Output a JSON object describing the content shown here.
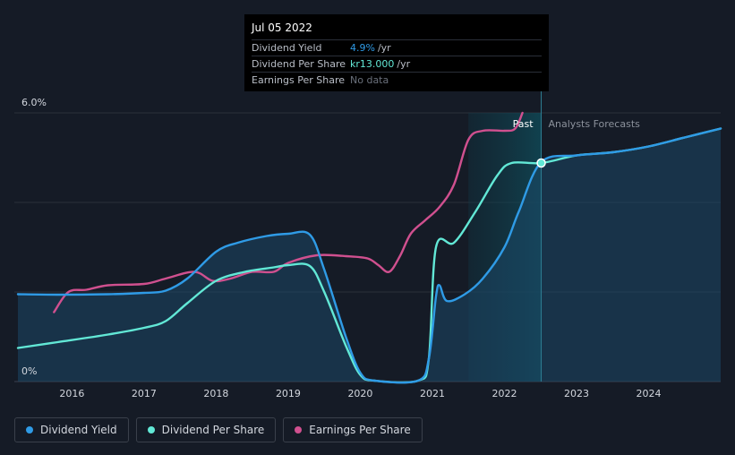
{
  "chart_data": {
    "type": "line",
    "x_range": [
      2015.2,
      2025.0
    ],
    "y_range_percent": [
      0,
      6.0
    ],
    "y_tick_labels": [
      "6.0%",
      "0%"
    ],
    "x_tick_labels": [
      "2016",
      "2017",
      "2018",
      "2019",
      "2020",
      "2021",
      "2022",
      "2023",
      "2024"
    ],
    "past_label": "Past",
    "forecast_label": "Analysts Forecasts",
    "divider_x": 2022.51,
    "series": [
      {
        "name": "Dividend Yield",
        "color": "#2f9be6",
        "unit": "percent",
        "points": [
          [
            2015.25,
            1.95
          ],
          [
            2015.8,
            1.94
          ],
          [
            2016.5,
            1.95
          ],
          [
            2017.0,
            1.98
          ],
          [
            2017.3,
            2.03
          ],
          [
            2017.6,
            2.3
          ],
          [
            2018.0,
            2.9
          ],
          [
            2018.3,
            3.1
          ],
          [
            2018.7,
            3.25
          ],
          [
            2019.0,
            3.3
          ],
          [
            2019.3,
            3.28
          ],
          [
            2019.5,
            2.5
          ],
          [
            2019.8,
            1.0
          ],
          [
            2020.0,
            0.2
          ],
          [
            2020.2,
            0.02
          ],
          [
            2020.8,
            0.02
          ],
          [
            2020.95,
            0.5
          ],
          [
            2021.05,
            1.9
          ],
          [
            2021.1,
            2.15
          ],
          [
            2021.2,
            1.8
          ],
          [
            2021.45,
            1.95
          ],
          [
            2021.7,
            2.3
          ],
          [
            2022.0,
            3.0
          ],
          [
            2022.2,
            3.8
          ],
          [
            2022.51,
            4.9
          ],
          [
            2023.0,
            5.05
          ],
          [
            2023.5,
            5.12
          ],
          [
            2024.0,
            5.25
          ],
          [
            2024.5,
            5.45
          ],
          [
            2025.0,
            5.65
          ]
        ]
      },
      {
        "name": "Dividend Per Share",
        "color": "#62e8d6",
        "unit": "NOK",
        "points": [
          [
            2015.25,
            0.75
          ],
          [
            2015.8,
            0.88
          ],
          [
            2016.5,
            1.05
          ],
          [
            2017.0,
            1.2
          ],
          [
            2017.3,
            1.35
          ],
          [
            2017.6,
            1.75
          ],
          [
            2018.0,
            2.25
          ],
          [
            2018.4,
            2.45
          ],
          [
            2018.8,
            2.55
          ],
          [
            2019.0,
            2.6
          ],
          [
            2019.3,
            2.58
          ],
          [
            2019.5,
            2.0
          ],
          [
            2019.8,
            0.8
          ],
          [
            2020.0,
            0.15
          ],
          [
            2020.2,
            0.02
          ],
          [
            2020.8,
            0.02
          ],
          [
            2020.95,
            0.5
          ],
          [
            2021.05,
            3.0
          ],
          [
            2021.3,
            3.1
          ],
          [
            2021.6,
            3.8
          ],
          [
            2021.9,
            4.6
          ],
          [
            2022.1,
            4.88
          ],
          [
            2022.51,
            4.88
          ],
          [
            2023.0,
            5.05
          ],
          [
            2023.5,
            5.12
          ],
          [
            2024.0,
            5.25
          ],
          [
            2024.5,
            5.45
          ],
          [
            2025.0,
            5.65
          ]
        ]
      },
      {
        "name": "Earnings Per Share",
        "color": "#d0508f",
        "unit": "NOK",
        "points": [
          [
            2015.75,
            1.55
          ],
          [
            2015.95,
            2.0
          ],
          [
            2016.2,
            2.05
          ],
          [
            2016.5,
            2.15
          ],
          [
            2017.0,
            2.18
          ],
          [
            2017.3,
            2.3
          ],
          [
            2017.7,
            2.45
          ],
          [
            2017.95,
            2.25
          ],
          [
            2018.2,
            2.3
          ],
          [
            2018.5,
            2.45
          ],
          [
            2018.8,
            2.45
          ],
          [
            2019.0,
            2.65
          ],
          [
            2019.4,
            2.82
          ],
          [
            2019.8,
            2.8
          ],
          [
            2020.1,
            2.75
          ],
          [
            2020.25,
            2.6
          ],
          [
            2020.4,
            2.45
          ],
          [
            2020.55,
            2.8
          ],
          [
            2020.7,
            3.3
          ],
          [
            2020.9,
            3.6
          ],
          [
            2021.1,
            3.9
          ],
          [
            2021.3,
            4.4
          ],
          [
            2021.5,
            5.4
          ],
          [
            2021.7,
            5.6
          ],
          [
            2022.0,
            5.6
          ],
          [
            2022.15,
            5.65
          ],
          [
            2022.25,
            6.0
          ]
        ]
      }
    ],
    "marker": {
      "x": 2022.51,
      "y": 4.88
    }
  },
  "tooltip": {
    "date": "Jul 05 2022",
    "rows": [
      {
        "name": "Dividend Yield",
        "value": "4.9%",
        "unit": "/yr"
      },
      {
        "name": "Dividend Per Share",
        "value": "kr13.000",
        "unit": "/yr"
      },
      {
        "name": "Earnings Per Share",
        "value": "No data",
        "unit": ""
      }
    ]
  },
  "legend": [
    {
      "label": "Dividend Yield",
      "color": "#2f9be6"
    },
    {
      "label": "Dividend Per Share",
      "color": "#62e8d6"
    },
    {
      "label": "Earnings Per Share",
      "color": "#d0508f"
    }
  ]
}
